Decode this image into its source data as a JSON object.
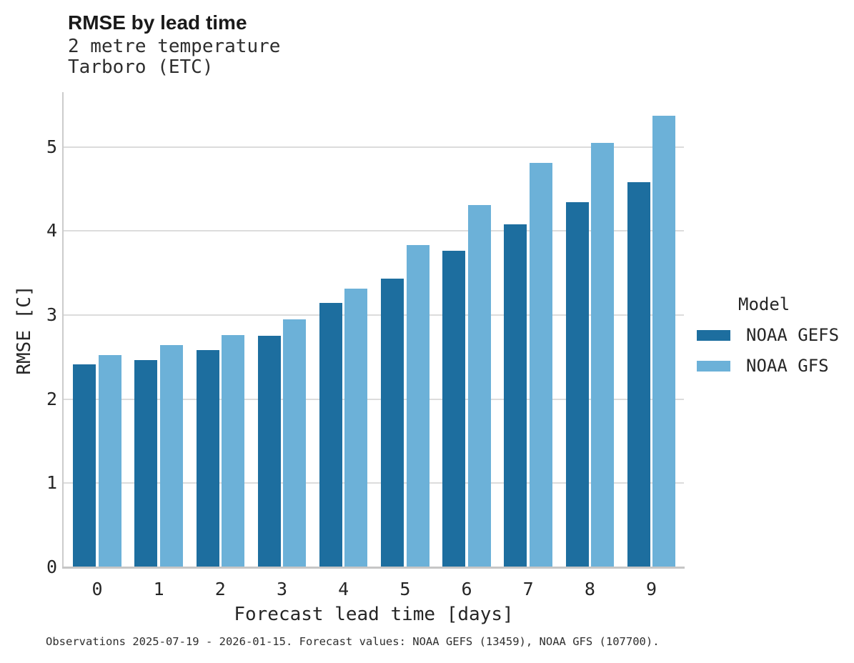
{
  "header": {
    "title": "RMSE by lead time",
    "subtitle1": "2 metre temperature",
    "subtitle2": "Tarboro (ETC)"
  },
  "legend": {
    "title": "Model",
    "entries": [
      {
        "label": "NOAA GEFS",
        "color": "#1d6e9f"
      },
      {
        "label": "NOAA GFS",
        "color": "#6cb1d8"
      }
    ]
  },
  "caption": "Observations 2025-07-19 - 2026-01-15. Forecast values: NOAA GEFS (13459), NOAA GFS (107700).",
  "chart_data": {
    "type": "bar",
    "title": "RMSE by lead time",
    "subtitle": [
      "2 metre temperature",
      "Tarboro (ETC)"
    ],
    "xlabel": "Forecast lead time [days]",
    "ylabel": "RMSE [C]",
    "categories": [
      0,
      1,
      2,
      3,
      4,
      5,
      6,
      7,
      8,
      9
    ],
    "series": [
      {
        "name": "NOAA GEFS",
        "color": "#1d6e9f",
        "values": [
          2.41,
          2.46,
          2.58,
          2.75,
          3.14,
          3.43,
          3.76,
          4.08,
          4.34,
          4.58
        ]
      },
      {
        "name": "NOAA GFS",
        "color": "#6cb1d8",
        "values": [
          2.52,
          2.64,
          2.76,
          2.95,
          3.31,
          3.83,
          4.31,
          4.81,
          5.05,
          5.37
        ]
      }
    ],
    "ylim": [
      0,
      5.65
    ],
    "yticks": [
      0,
      1,
      2,
      3,
      4,
      5
    ],
    "grid": true,
    "legend_position": "right",
    "legend_title": "Model"
  }
}
